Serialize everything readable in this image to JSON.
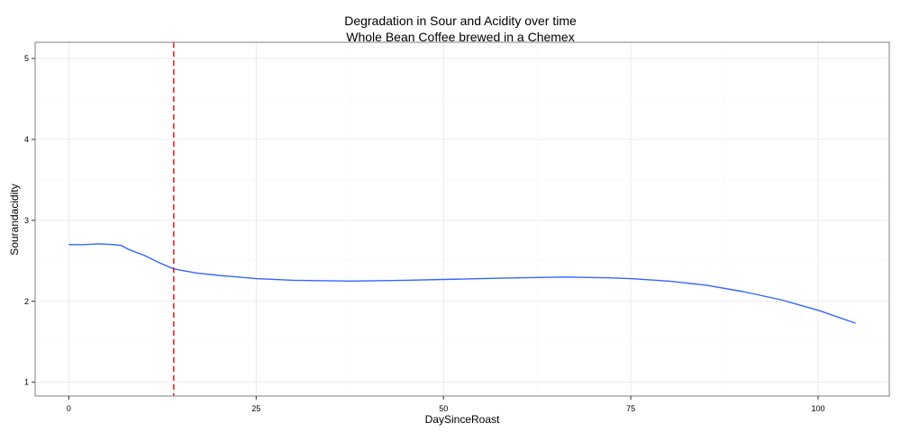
{
  "chart_data": {
    "type": "line",
    "title": "Degradation in Sour and Acidity over time",
    "subtitle": "Whole Bean Coffee brewed in a Chemex",
    "xlabel": "DaySinceRoast",
    "ylabel": "Sourandacidity",
    "xlim": [
      -4.5,
      109.5
    ],
    "ylim": [
      0.83,
      5.2
    ],
    "x_ticks": [
      0,
      25,
      50,
      75,
      100
    ],
    "y_ticks": [
      1,
      2,
      3,
      4,
      5
    ],
    "grid": true,
    "series": [
      {
        "color": "#3366ff",
        "x": [
          0,
          2,
          4,
          6,
          7,
          8,
          10,
          12,
          14,
          17,
          20,
          25,
          30,
          37.5,
          45,
          50,
          55,
          60,
          66,
          72,
          75,
          80,
          85,
          90,
          95,
          100,
          105
        ],
        "y": [
          2.7,
          2.7,
          2.71,
          2.7,
          2.69,
          2.64,
          2.57,
          2.48,
          2.4,
          2.35,
          2.32,
          2.28,
          2.26,
          2.25,
          2.26,
          2.27,
          2.28,
          2.29,
          2.3,
          2.29,
          2.28,
          2.25,
          2.2,
          2.12,
          2.02,
          1.89,
          1.73
        ]
      }
    ],
    "vline": {
      "x": 14,
      "color": "#ff0000",
      "style": "dashed"
    }
  }
}
